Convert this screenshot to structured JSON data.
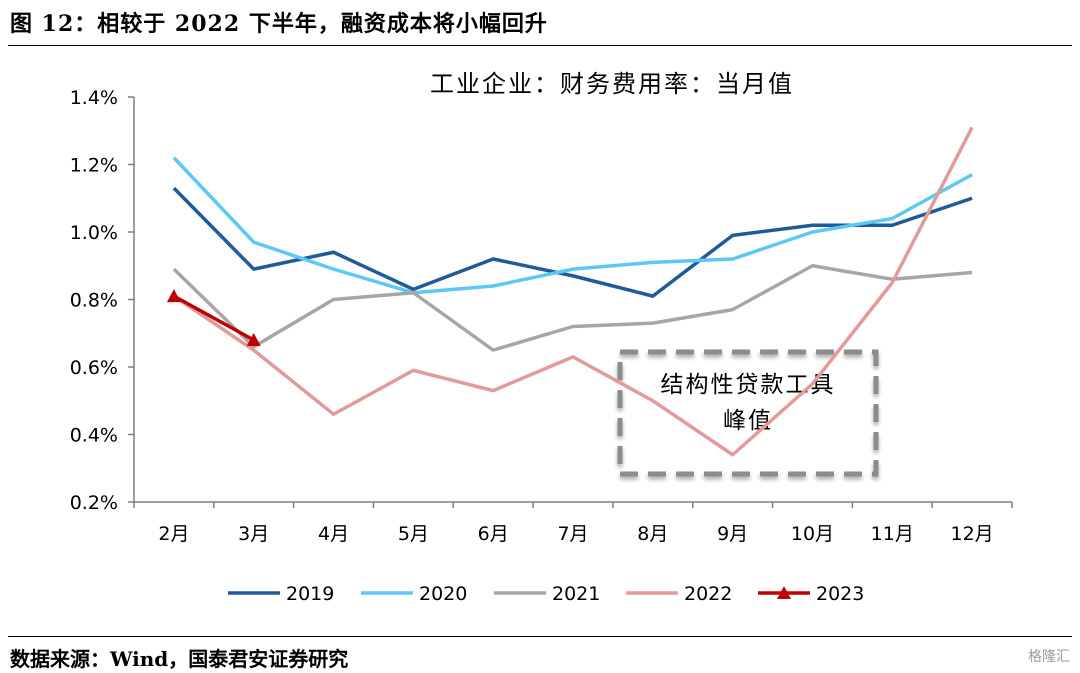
{
  "figure": {
    "title": "图 12：相较于 2022 下半年，融资成本将小幅回升",
    "source": "数据来源：Wind，国泰君安证券研究",
    "watermark": "格隆汇"
  },
  "chart_data": {
    "type": "line",
    "title": "工业企业：财务费用率：当月值",
    "categories": [
      "2月",
      "3月",
      "4月",
      "5月",
      "6月",
      "7月",
      "8月",
      "9月",
      "10月",
      "11月",
      "12月"
    ],
    "ylim": [
      0.2,
      1.4
    ],
    "yticks": [
      "0.2%",
      "0.4%",
      "0.6%",
      "0.8%",
      "1.0%",
      "1.2%",
      "1.4%"
    ],
    "ytick_values": [
      0.2,
      0.4,
      0.6,
      0.8,
      1.0,
      1.2,
      1.4
    ],
    "grid": false,
    "legend_position": "bottom",
    "series": [
      {
        "name": "2019",
        "color": "#1f5a99",
        "marker": "none",
        "values": [
          1.13,
          0.89,
          0.94,
          0.83,
          0.92,
          0.87,
          0.81,
          0.99,
          1.02,
          1.02,
          1.1
        ]
      },
      {
        "name": "2020",
        "color": "#5bc8f5",
        "marker": "none",
        "values": [
          1.22,
          0.97,
          0.89,
          0.82,
          0.84,
          0.89,
          0.91,
          0.92,
          1.0,
          1.04,
          1.17
        ]
      },
      {
        "name": "2021",
        "color": "#a6a6a6",
        "marker": "none",
        "values": [
          0.89,
          0.66,
          0.8,
          0.82,
          0.65,
          0.72,
          0.73,
          0.77,
          0.9,
          0.86,
          0.88
        ]
      },
      {
        "name": "2022",
        "color": "#e39a9a",
        "marker": "none",
        "values": [
          0.81,
          0.65,
          0.46,
          0.59,
          0.53,
          0.63,
          0.5,
          0.34,
          0.55,
          0.85,
          1.31
        ]
      },
      {
        "name": "2023",
        "color": "#c00000",
        "marker": "triangle",
        "values": [
          0.81,
          0.68,
          null,
          null,
          null,
          null,
          null,
          null,
          null,
          null,
          null
        ]
      }
    ],
    "annotation": {
      "lines": [
        "结构性贷款工具",
        "峰值"
      ]
    }
  }
}
